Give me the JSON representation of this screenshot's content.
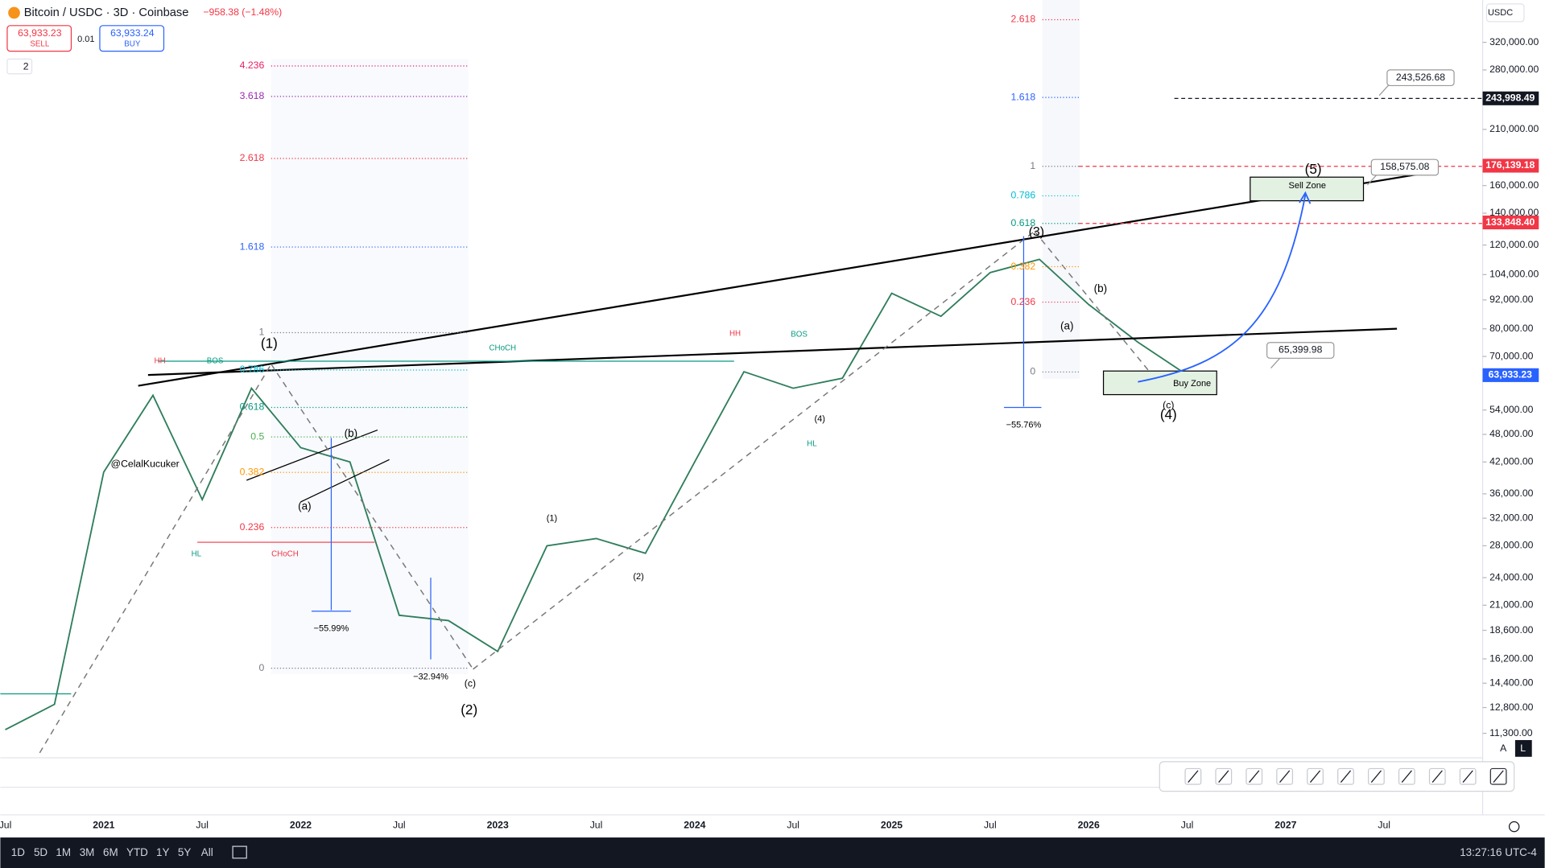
{
  "header": {
    "symbol": "Bitcoin / USDC · 3D · Coinbase",
    "change": "−958.38 (−1.48%)",
    "sell_price": "63,933.23",
    "sell": "SELL",
    "spread": "0.01",
    "buy_price": "63,933.24",
    "buy": "BUY",
    "indicators": "2",
    "currency": "USDC"
  },
  "price_axis": {
    "scale": "log",
    "ticks": [
      {
        "value": 320000,
        "label": "320,000.00"
      },
      {
        "value": 280000,
        "label": "280,000.00"
      },
      {
        "value": 210000,
        "label": "210,000.00"
      },
      {
        "value": 160000,
        "label": "160,000.00"
      },
      {
        "value": 140000,
        "label": "140,000.00"
      },
      {
        "value": 120000,
        "label": "120,000.00"
      },
      {
        "value": 104000,
        "label": "104,000.00"
      },
      {
        "value": 92000,
        "label": "92,000.00"
      },
      {
        "value": 80000,
        "label": "80,000.00"
      },
      {
        "value": 70000,
        "label": "70,000.00"
      },
      {
        "value": 54000,
        "label": "54,000.00"
      },
      {
        "value": 48000,
        "label": "48,000.00"
      },
      {
        "value": 42000,
        "label": "42,000.00"
      },
      {
        "value": 36000,
        "label": "36,000.00"
      },
      {
        "value": 32000,
        "label": "32,000.00"
      },
      {
        "value": 28000,
        "label": "28,000.00"
      },
      {
        "value": 24000,
        "label": "24,000.00"
      },
      {
        "value": 21000,
        "label": "21,000.00"
      },
      {
        "value": 18600,
        "label": "18,600.00"
      },
      {
        "value": 16200,
        "label": "16,200.00"
      },
      {
        "value": 14400,
        "label": "14,400.00"
      },
      {
        "value": 12800,
        "label": "12,800.00"
      },
      {
        "value": 11300,
        "label": "11,300.00"
      }
    ],
    "price_tags": [
      {
        "value": 243998.49,
        "label": "243,998.49",
        "color": "#131722"
      },
      {
        "value": 176139.18,
        "label": "176,139.18",
        "color": "#f23645"
      },
      {
        "value": 133848.4,
        "label": "133,848.40",
        "color": "#f23645"
      },
      {
        "value": 63933.23,
        "label": "63,933.23",
        "color": "#2962ff"
      }
    ],
    "callouts": [
      {
        "value": 243526.68,
        "label": "243,526.68"
      },
      {
        "value": 158575.08,
        "label": "158,575.08"
      },
      {
        "value": 65399.98,
        "label": "65,399.98"
      }
    ]
  },
  "time_axis": {
    "labels": [
      "Jul",
      "2021",
      "Jul",
      "2022",
      "Jul",
      "2023",
      "Jul",
      "2024",
      "Jul",
      "2025",
      "Jul",
      "2026",
      "Jul",
      "2027",
      "Jul"
    ]
  },
  "price_path": {
    "values": [
      11500,
      13000,
      40000,
      58000,
      35000,
      60000,
      45000,
      42000,
      20000,
      19500,
      16800,
      28000,
      29000,
      27000,
      42000,
      65000,
      60000,
      63000,
      95000,
      85000,
      105000,
      112000,
      90000,
      75000,
      64000
    ]
  },
  "fib_left": [
    "4.236",
    "3.618",
    "2.618",
    "1.618",
    "1",
    "0.786",
    "0.618",
    "0.5",
    "0.382",
    "0.236",
    "0"
  ],
  "fib_mid": [
    "2.618",
    "1.618",
    "1",
    "0.786",
    "0.618",
    "0.382",
    "0.236",
    "0"
  ],
  "annotations": [
    "(1)",
    "(2)",
    "(3)",
    "(4)",
    "(5)",
    "(a)",
    "(b)",
    "(c)",
    "(a)",
    "(b)",
    "(c)",
    "(1)",
    "(2)",
    "(4)",
    "HH",
    "BOS",
    "CHoCH",
    "HL",
    "HH",
    "BOS",
    "HL",
    "CHoCH",
    "@CelalKucuker",
    "−55.99%",
    "−32.94%",
    "−55.76%",
    "Sell Zone",
    "Buy Zone"
  ],
  "footer": {
    "ranges": [
      "1D",
      "5D",
      "1M",
      "3M",
      "6M",
      "YTD",
      "1Y",
      "5Y",
      "All"
    ],
    "clock": "13:27:16 UTC-4",
    "auto": "A",
    "log": "L"
  }
}
